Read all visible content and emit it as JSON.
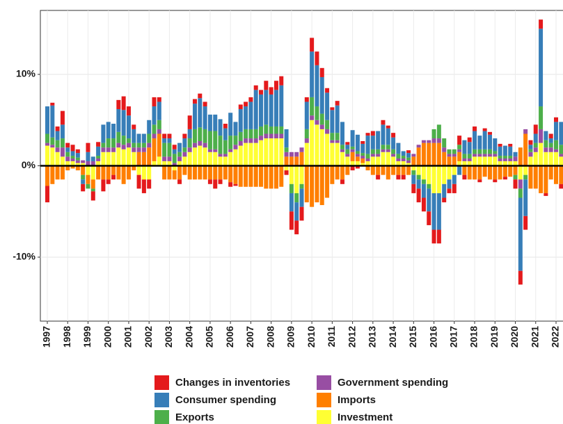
{
  "chart_data": {
    "type": "stacked_bar",
    "categories": [
      "1997",
      null,
      null,
      null,
      "1998",
      null,
      null,
      null,
      "1999",
      null,
      null,
      null,
      "2000",
      null,
      null,
      null,
      "2001",
      null,
      null,
      null,
      "2002",
      null,
      null,
      null,
      "2003",
      null,
      null,
      null,
      "2004",
      null,
      null,
      null,
      "2005",
      null,
      null,
      null,
      "2006",
      null,
      null,
      null,
      "2007",
      null,
      null,
      null,
      "2008",
      null,
      null,
      null,
      "2009",
      null,
      null,
      null,
      "2010",
      null,
      null,
      null,
      "2011",
      null,
      null,
      null,
      "2012",
      null,
      null,
      null,
      "2013",
      null,
      null,
      null,
      "2014",
      null,
      null,
      null,
      "2015",
      null,
      null,
      null,
      "2016",
      null,
      null,
      null,
      "2017",
      null,
      null,
      null,
      "2018",
      null,
      null,
      null,
      "2019",
      null,
      null,
      null,
      "2020",
      null,
      null,
      null,
      "2021",
      null,
      null,
      null,
      "2022",
      null
    ],
    "series": [
      {
        "name": "Changes in inventories",
        "color": "#e41a1c",
        "values": [
          -1.8,
          0.3,
          0.5,
          1.5,
          0.5,
          0.7,
          0.4,
          -0.8,
          1,
          -1,
          0.5,
          -1.3,
          -0.5,
          -0.5,
          1,
          1.5,
          1,
          0.5,
          -1.5,
          -1.5,
          -1,
          1,
          0.5,
          0.5,
          0.5,
          0.5,
          -0.5,
          0.5,
          1.5,
          0.5,
          0.5,
          0.5,
          -0.5,
          -1,
          -0.5,
          0.5,
          -0.5,
          -0.2,
          0.5,
          0.5,
          0.5,
          0.5,
          0.5,
          1,
          0.8,
          1,
          1,
          -0.5,
          -2,
          -1.5,
          -1.5,
          0.5,
          1.5,
          1.5,
          1,
          0.5,
          0.3,
          0.5,
          -0.5,
          0.3,
          -0.5,
          -0.3,
          0.3,
          0.3,
          0.5,
          -0.5,
          0.5,
          0.3,
          0.5,
          -0.5,
          -0.5,
          0.3,
          -1,
          -1.5,
          -1.5,
          -1.5,
          -1.5,
          -1.5,
          -0.5,
          -0.5,
          -1,
          1,
          -0.5,
          0.5,
          0.5,
          -0.3,
          0.3,
          0.3,
          -0.3,
          0.3,
          -0.3,
          0.3,
          -1,
          -1.5,
          -1.5,
          0.5,
          1,
          1,
          -0.3,
          0.5,
          0.5,
          -0.5
        ]
      },
      {
        "name": "Consumer spending",
        "color": "#377eb8",
        "values": [
          3,
          3.5,
          1,
          1.5,
          0.5,
          0.5,
          0.5,
          -0.5,
          1,
          0.5,
          1,
          2,
          1.8,
          1.6,
          2.5,
          2.8,
          2.5,
          1.5,
          1,
          1,
          1.5,
          2,
          2,
          0.5,
          0.5,
          0.5,
          1,
          1,
          1,
          2.8,
          3.2,
          2.5,
          1.8,
          1.8,
          1.8,
          1.3,
          2.5,
          1.5,
          2.5,
          2.5,
          3,
          4.3,
          3.5,
          3.8,
          3.5,
          4,
          4.5,
          2,
          -2,
          -2,
          -2,
          3,
          5,
          4.5,
          4,
          3,
          2.5,
          3,
          2.5,
          0.5,
          1.8,
          1.8,
          1,
          2,
          1.5,
          2,
          2.2,
          1.8,
          1.3,
          1.2,
          0.5,
          0.5,
          -1,
          -1,
          -1.5,
          -2.5,
          -4,
          -4,
          -1.5,
          -1,
          -1,
          -1,
          1.5,
          1.3,
          2,
          1.5,
          2,
          1.6,
          1.4,
          1,
          1.1,
          1,
          0.5,
          -8,
          -4,
          0.5,
          1,
          8.5,
          1,
          0.5,
          2,
          2.5
        ]
      },
      {
        "name": "Exports",
        "color": "#4daf4a",
        "values": [
          1,
          0.8,
          0.8,
          1,
          0.5,
          0.3,
          0.3,
          -0.5,
          -0.5,
          -0.3,
          0.3,
          0.5,
          1,
          1,
          1.2,
          1,
          0.5,
          0.5,
          0.5,
          0.5,
          1,
          1,
          1,
          1.5,
          1.5,
          1,
          0.5,
          0.5,
          1,
          1.5,
          1.5,
          1.5,
          2,
          2,
          2,
          1.5,
          1.5,
          1,
          1,
          1,
          1,
          1,
          1,
          1,
          0.8,
          0.8,
          0.8,
          0.5,
          -1,
          -1,
          -0.5,
          1,
          2,
          1.5,
          1.2,
          1,
          0.8,
          0.8,
          0.5,
          0.5,
          0.3,
          0.3,
          0.3,
          0.5,
          0.5,
          0.5,
          0.5,
          0.5,
          0.5,
          0.5,
          0.3,
          0.3,
          -0.5,
          -0.5,
          -0.5,
          -0.5,
          1,
          1.5,
          1,
          0.5,
          0.5,
          0.5,
          0.5,
          0.5,
          0.5,
          0.5,
          0.5,
          0.5,
          0.3,
          0.3,
          0.3,
          0.3,
          -0.5,
          -1,
          -0.5,
          0.3,
          0.5,
          2.5,
          0.8,
          0.5,
          1,
          1
        ]
      },
      {
        "name": "Government spending",
        "color": "#984ea3",
        "values": [
          0.3,
          0.3,
          0.5,
          1,
          0.5,
          0.3,
          0.3,
          0.3,
          0.5,
          0.5,
          0.3,
          0.5,
          0.5,
          0.5,
          0.5,
          0.5,
          0.5,
          0.5,
          0.5,
          0.5,
          0.5,
          0.5,
          0.5,
          0.5,
          0.5,
          0.3,
          0.5,
          0.5,
          0.5,
          0.5,
          0.5,
          0.5,
          0.3,
          0.3,
          0.3,
          0.3,
          0.3,
          0.5,
          0.5,
          0.5,
          0.5,
          0.5,
          0.5,
          0.5,
          0.5,
          0.5,
          0.5,
          0.5,
          0.5,
          0.5,
          0.5,
          0.5,
          0.5,
          0.5,
          0.5,
          0.5,
          0.3,
          0.3,
          0.3,
          0.3,
          0.3,
          0.3,
          0.3,
          0.3,
          0.3,
          0.3,
          0.3,
          0.3,
          0.3,
          0.3,
          0.3,
          0.3,
          0.3,
          0.3,
          0.3,
          0.3,
          0.5,
          0.5,
          0.5,
          0.3,
          0.3,
          0.3,
          0.3,
          0.3,
          0.3,
          0.3,
          0.3,
          0.3,
          0.3,
          0.3,
          0.3,
          0.3,
          0.5,
          -1,
          0.5,
          0.5,
          0.5,
          1.5,
          0.5,
          0.5,
          0.3,
          0.3
        ]
      },
      {
        "name": "Imports",
        "color": "#ff7f00",
        "values": [
          -2.2,
          -2,
          -1.5,
          -1.5,
          -0.5,
          -0.3,
          -0.5,
          -1,
          -1,
          -1,
          -1.5,
          -1.5,
          -1.5,
          -1,
          -1.5,
          -2,
          -1.5,
          -0.5,
          1.5,
          1.5,
          2,
          2.5,
          2.5,
          -1.5,
          -1.5,
          -1,
          -1.5,
          -1,
          -1.5,
          -1.5,
          -1.5,
          -1.5,
          -1.5,
          -1.5,
          -1.5,
          -1.5,
          -1.8,
          -2,
          -2.3,
          -2.3,
          -2.3,
          -2.3,
          -2.3,
          -2.5,
          -2.5,
          -2.5,
          -2.3,
          1,
          1,
          1,
          1.5,
          -4,
          -4.5,
          -4,
          -4.3,
          -3.5,
          -2,
          -1.5,
          -1.5,
          -1,
          1,
          0.5,
          0.5,
          -0.5,
          -1,
          -1,
          -1,
          -1.5,
          -1,
          -1,
          -1,
          -1,
          1,
          2,
          2.5,
          2.5,
          2.5,
          2.5,
          1.5,
          1,
          1,
          1,
          -1,
          -1.5,
          -1.5,
          -1.5,
          -1.2,
          -1.5,
          -1.5,
          -1.5,
          -1.2,
          -1.2,
          -1,
          2,
          3.5,
          -2.5,
          -2.5,
          -3,
          -3,
          -1.5,
          -2,
          -2
        ]
      },
      {
        "name": "Investment",
        "color": "#ffff33",
        "values": [
          2.2,
          2,
          1.5,
          1,
          0.5,
          0.5,
          0.3,
          0.3,
          -1,
          -1.5,
          0.5,
          1.5,
          1.5,
          1.5,
          2,
          1.8,
          2,
          1.5,
          -1,
          -1.5,
          -1.5,
          0.5,
          1,
          0.5,
          0.5,
          -0.5,
          0.5,
          1,
          1.5,
          2,
          2.2,
          2,
          1.5,
          1.5,
          1,
          1,
          1.5,
          1.8,
          2.2,
          2.5,
          2.5,
          2.5,
          2.8,
          3,
          3,
          3,
          3,
          -0.5,
          -2,
          -3,
          -2,
          2.5,
          5,
          4.5,
          4,
          3.5,
          2.5,
          2.5,
          1.5,
          1,
          0.5,
          0.5,
          0.3,
          0.5,
          1,
          1,
          1.5,
          1.5,
          1,
          0.5,
          0.5,
          0.3,
          -0.5,
          -1,
          -1.5,
          -2,
          -3,
          -3,
          -2,
          -1.5,
          -1,
          0.5,
          0.5,
          0.5,
          1,
          1,
          1,
          1,
          1,
          0.5,
          0.5,
          0.5,
          0.5,
          -1.5,
          -1,
          1,
          1.5,
          2.5,
          1.5,
          1.5,
          1.5,
          1
        ]
      }
    ],
    "ylim": [
      -17,
      17
    ],
    "yticks": [
      {
        "value": -10,
        "label": "-10%"
      },
      {
        "value": 0,
        "label": "0%"
      },
      {
        "value": 10,
        "label": "10%"
      }
    ],
    "grid": true
  }
}
